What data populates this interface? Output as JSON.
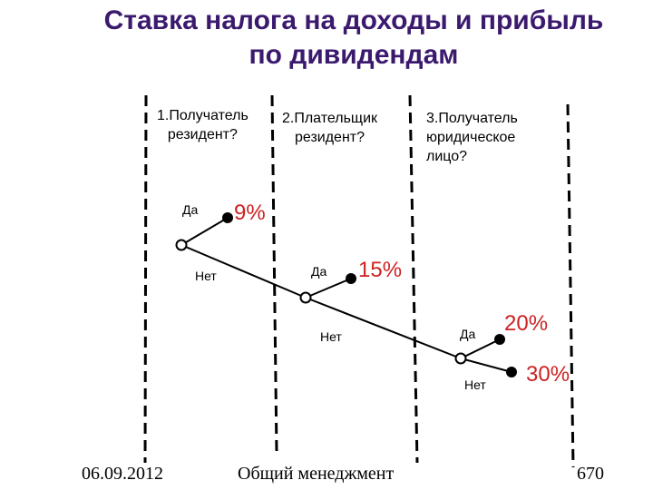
{
  "title": {
    "line1": "Ставка налога на доходы и прибыль",
    "line2": "по дивидендам"
  },
  "questions": [
    {
      "line1": "1.Получатель",
      "line2": "резидент?",
      "line3": ""
    },
    {
      "line1": "2.Плательщик",
      "line2": "резидент?",
      "line3": ""
    },
    {
      "line1": "3.Получатель",
      "line2": "юридическое",
      "line3": "лицо?"
    }
  ],
  "branch_labels": {
    "yes": "Да",
    "no": "Нет"
  },
  "rates": [
    "9%",
    "15%",
    "20%",
    "30%"
  ],
  "colors": {
    "title": "#3b1a6e",
    "rate": "#cc2222",
    "line": "#000000"
  },
  "footer": {
    "date": "06.09.2012",
    "subject": "Общий менеджмент",
    "page": "670"
  }
}
